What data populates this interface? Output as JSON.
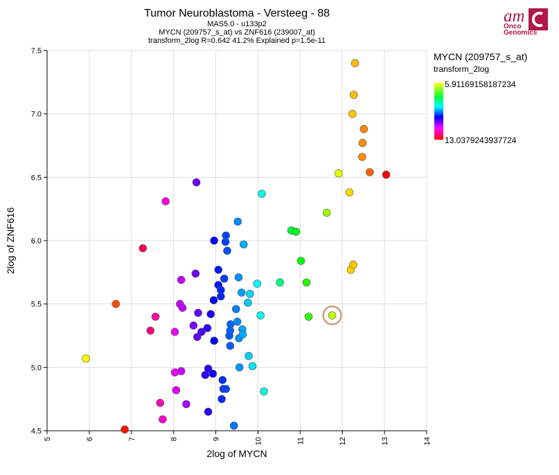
{
  "chart_data": {
    "type": "scatter",
    "title": "Tumor Neuroblastoma  - Versteeg - 88",
    "subtitle_lines": [
      "MAS5.0 - u133p2",
      "MYCN (209757_s_at) vs ZNF616 (239007_at)",
      "transform_2log R=0.642 41.2% Explained p=1.5e-11"
    ],
    "xlabel": "2log of MYCN",
    "ylabel": "2log of ZNF616",
    "xlim": [
      5,
      14
    ],
    "ylim": [
      4.5,
      7.5
    ],
    "xticks": [
      5,
      6,
      7,
      8,
      9,
      10,
      11,
      12,
      13,
      14
    ],
    "xtick_labels": [
      "5",
      "6",
      "7",
      "8",
      "9",
      "10",
      "11",
      "12",
      "13",
      "14"
    ],
    "yticks": [
      4.5,
      5.0,
      5.5,
      6.0,
      6.5,
      7.0,
      7.5
    ],
    "ytick_labels": [
      "4.5",
      "5.0",
      "5.5",
      "6.0",
      "6.5",
      "7.0",
      "7.5"
    ],
    "grid": true,
    "color_min": 5.91169158187234,
    "color_max": 13.0379243937724,
    "highlight": {
      "x": 11.76,
      "y": 5.41
    },
    "points": [
      [
        5.92,
        5.07
      ],
      [
        6.63,
        5.5
      ],
      [
        6.84,
        4.51
      ],
      [
        7.27,
        5.94
      ],
      [
        7.45,
        5.29
      ],
      [
        7.57,
        5.4
      ],
      [
        7.68,
        4.72
      ],
      [
        7.74,
        4.59
      ],
      [
        7.81,
        6.31
      ],
      [
        8.03,
        4.96
      ],
      [
        8.03,
        5.28
      ],
      [
        8.06,
        4.82
      ],
      [
        8.15,
        5.5
      ],
      [
        8.18,
        4.97
      ],
      [
        8.18,
        5.69
      ],
      [
        8.21,
        5.47
      ],
      [
        8.3,
        4.71
      ],
      [
        8.47,
        5.33
      ],
      [
        8.52,
        5.74
      ],
      [
        8.54,
        6.46
      ],
      [
        8.56,
        5.24
      ],
      [
        8.58,
        5.43
      ],
      [
        8.66,
        5.28
      ],
      [
        8.75,
        4.94
      ],
      [
        8.8,
        5.31
      ],
      [
        8.82,
        4.99
      ],
      [
        8.82,
        4.65
      ],
      [
        8.88,
        5.42
      ],
      [
        8.93,
        4.95
      ],
      [
        8.95,
        5.53
      ],
      [
        8.96,
        5.21
      ],
      [
        8.96,
        6.0
      ],
      [
        9.06,
        5.65
      ],
      [
        9.06,
        5.77
      ],
      [
        9.12,
        5.56
      ],
      [
        9.12,
        5.61
      ],
      [
        9.14,
        4.75
      ],
      [
        9.16,
        4.9
      ],
      [
        9.18,
        4.83
      ],
      [
        9.2,
        5.7
      ],
      [
        9.23,
        5.99
      ],
      [
        9.24,
        6.04
      ],
      [
        9.24,
        4.83
      ],
      [
        9.27,
        5.92
      ],
      [
        9.32,
        5.25
      ],
      [
        9.34,
        5.17
      ],
      [
        9.34,
        5.29
      ],
      [
        9.35,
        5.34
      ],
      [
        9.43,
        4.54
      ],
      [
        9.48,
        5.46
      ],
      [
        9.51,
        5.36
      ],
      [
        9.52,
        6.15
      ],
      [
        9.54,
        5.71
      ],
      [
        9.55,
        5.23
      ],
      [
        9.56,
        5.0
      ],
      [
        9.61,
        5.59
      ],
      [
        9.63,
        5.3
      ],
      [
        9.64,
        5.26
      ],
      [
        9.66,
        5.97
      ],
      [
        9.76,
        5.51
      ],
      [
        9.78,
        5.09
      ],
      [
        9.81,
        5.58
      ],
      [
        9.87,
        5.01
      ],
      [
        9.98,
        5.66
      ],
      [
        10.06,
        5.41
      ],
      [
        10.09,
        6.37
      ],
      [
        10.14,
        4.81
      ],
      [
        10.52,
        5.67
      ],
      [
        10.79,
        6.08
      ],
      [
        10.9,
        6.07
      ],
      [
        11.02,
        5.84
      ],
      [
        11.15,
        5.67
      ],
      [
        11.2,
        5.4
      ],
      [
        11.63,
        6.22
      ],
      [
        11.76,
        5.41
      ],
      [
        11.91,
        6.53
      ],
      [
        12.17,
        6.38
      ],
      [
        12.2,
        5.77
      ],
      [
        12.24,
        7.0
      ],
      [
        12.26,
        5.81
      ],
      [
        12.27,
        7.15
      ],
      [
        12.3,
        7.4
      ],
      [
        12.47,
        6.66
      ],
      [
        12.48,
        6.77
      ],
      [
        12.51,
        6.88
      ],
      [
        12.65,
        6.54
      ],
      [
        13.04,
        6.52
      ]
    ]
  },
  "legend": {
    "title": "MYCN (209757_s_at)",
    "subtitle": "transform_2log",
    "max_label": "5.91169158187234",
    "min_label": "13.0379243937724"
  },
  "logo": {
    "mark": "am",
    "line1": "Onco",
    "line2": "Genomics",
    "icon": "c-logo-icon",
    "color": "#b0174a"
  }
}
